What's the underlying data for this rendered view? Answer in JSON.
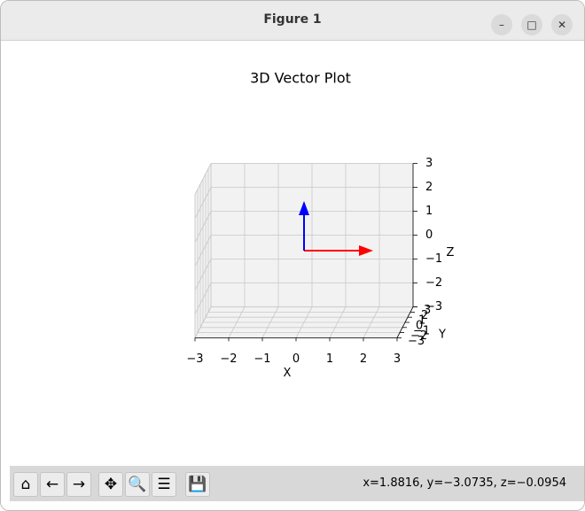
{
  "window": {
    "title": "Figure 1"
  },
  "chart_data": {
    "type": "quiver3d",
    "title": "3D Vector Plot",
    "xlabel": "X",
    "ylabel": "Y",
    "zlabel": "Z",
    "xlim": [
      -3,
      3
    ],
    "ylim": [
      -3,
      3
    ],
    "zlim": [
      -3,
      3
    ],
    "xticks": [
      {
        "value": -3,
        "label": "−3"
      },
      {
        "value": -2,
        "label": "−2"
      },
      {
        "value": -1,
        "label": "−1"
      },
      0,
      1,
      2,
      3
    ],
    "yticks": [
      {
        "value": -3,
        "label": "−3"
      },
      {
        "value": -2,
        "label": "−2"
      },
      {
        "value": -1,
        "label": "−1"
      },
      0,
      1,
      2,
      3
    ],
    "zticks": [
      {
        "value": -3,
        "label": "−3"
      },
      {
        "value": -2,
        "label": "−2"
      },
      {
        "value": -1,
        "label": "−1"
      },
      0,
      1,
      2,
      3
    ],
    "vectors": [
      {
        "color": "#ff0000",
        "origin": [
          0,
          0,
          0
        ],
        "components": [
          2,
          0,
          0
        ]
      },
      {
        "color": "#0000ff",
        "origin": [
          0,
          0,
          0
        ],
        "components": [
          0,
          0,
          2
        ]
      }
    ],
    "grid": true
  },
  "status": "x=1.8816, y=−3.0735, z=−0.0954"
}
